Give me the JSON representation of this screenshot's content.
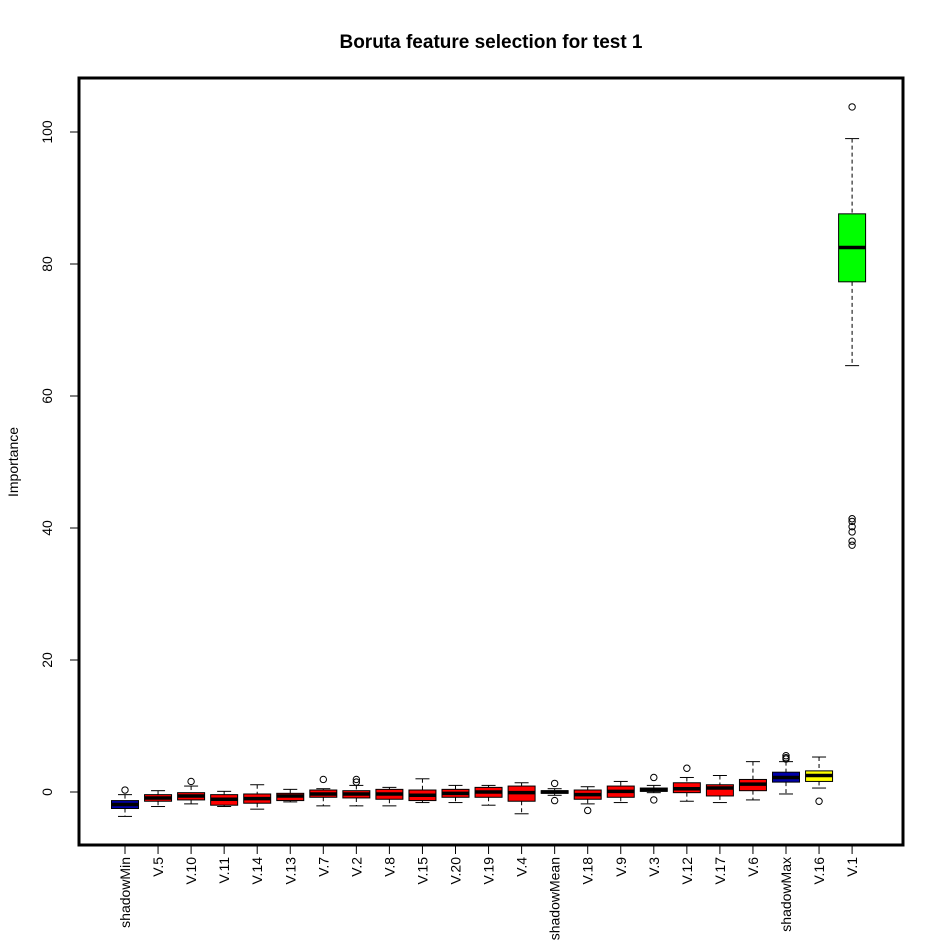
{
  "chart_data": {
    "type": "boxplot",
    "title": "Boruta feature selection for test 1",
    "xlabel": "",
    "ylabel": "Importance",
    "ylim": [
      -8,
      108
    ],
    "yticks": [
      0,
      20,
      40,
      60,
      80,
      100
    ],
    "grid": false,
    "legend": "none",
    "status_colors": {
      "shadow": "#0000aa",
      "rejected": "#ff0000",
      "tentative": "#ffff00",
      "confirmed": "#00ff00"
    },
    "categories": [
      "shadowMin",
      "V.5",
      "V.10",
      "V.11",
      "V.14",
      "V.13",
      "V.7",
      "V.2",
      "V.8",
      "V.15",
      "V.20",
      "V.19",
      "V.4",
      "shadowMean",
      "V.18",
      "V.9",
      "V.3",
      "V.12",
      "V.17",
      "V.6",
      "shadowMax",
      "V.16",
      "V.1"
    ],
    "category_labels": [
      "shadowMin",
      "V.5",
      "V.10",
      "V.11",
      "V.14",
      "V.13",
      "V.7",
      "V.2",
      "V.8",
      "V.15",
      "V.20",
      "V.19",
      "V.4",
      "shadowMean",
      "V.18",
      "V.9",
      "V.3",
      "V.12",
      "V.17",
      "V.6",
      "shadowMax",
      "V.16",
      "V.1"
    ],
    "boxes": [
      {
        "status": "shadow",
        "min": -3.7,
        "q1": -2.5,
        "median": -1.9,
        "q3": -1.3,
        "max": -0.4,
        "outliers": [
          0.3
        ]
      },
      {
        "status": "rejected",
        "min": -2.2,
        "q1": -1.4,
        "median": -0.9,
        "q3": -0.4,
        "max": 0.2,
        "outliers": []
      },
      {
        "status": "rejected",
        "min": -1.8,
        "q1": -1.2,
        "median": -0.6,
        "q3": -0.1,
        "max": 0.9,
        "outliers": [
          1.6
        ]
      },
      {
        "status": "rejected",
        "min": -2.2,
        "q1": -2.0,
        "median": -1.1,
        "q3": -0.4,
        "max": 0.1,
        "outliers": []
      },
      {
        "status": "rejected",
        "min": -2.6,
        "q1": -1.7,
        "median": -1.0,
        "q3": -0.3,
        "max": 1.1,
        "outliers": []
      },
      {
        "status": "rejected",
        "min": -1.5,
        "q1": -1.3,
        "median": -0.6,
        "q3": -0.2,
        "max": 0.4,
        "outliers": []
      },
      {
        "status": "rejected",
        "min": -2.1,
        "q1": -0.8,
        "median": -0.3,
        "q3": 0.3,
        "max": 0.5,
        "outliers": [
          1.9
        ]
      },
      {
        "status": "rejected",
        "min": -2.1,
        "q1": -0.9,
        "median": -0.3,
        "q3": 0.2,
        "max": 1.0,
        "outliers": [
          1.5,
          1.9
        ]
      },
      {
        "status": "rejected",
        "min": -2.1,
        "q1": -1.1,
        "median": -0.3,
        "q3": 0.4,
        "max": 0.7,
        "outliers": []
      },
      {
        "status": "rejected",
        "min": -1.6,
        "q1": -1.3,
        "median": -0.5,
        "q3": 0.3,
        "max": 2.0,
        "outliers": []
      },
      {
        "status": "rejected",
        "min": -1.6,
        "q1": -0.8,
        "median": -0.2,
        "q3": 0.4,
        "max": 1.0,
        "outliers": []
      },
      {
        "status": "rejected",
        "min": -2.0,
        "q1": -0.8,
        "median": 0.0,
        "q3": 0.7,
        "max": 1.0,
        "outliers": []
      },
      {
        "status": "rejected",
        "min": -3.3,
        "q1": -1.4,
        "median": -0.1,
        "q3": 0.9,
        "max": 1.4,
        "outliers": []
      },
      {
        "status": "shadow",
        "min": -0.5,
        "q1": -0.2,
        "median": 0.0,
        "q3": 0.2,
        "max": 0.5,
        "outliers": [
          -1.3,
          1.3
        ]
      },
      {
        "status": "rejected",
        "min": -1.8,
        "q1": -1.1,
        "median": -0.4,
        "q3": 0.3,
        "max": 0.8,
        "outliers": [
          -2.8
        ]
      },
      {
        "status": "rejected",
        "min": -1.6,
        "q1": -0.8,
        "median": 0.1,
        "q3": 0.9,
        "max": 1.6,
        "outliers": []
      },
      {
        "status": "rejected",
        "min": -0.1,
        "q1": 0.1,
        "median": 0.3,
        "q3": 0.6,
        "max": 1.0,
        "outliers": [
          -1.2,
          2.2
        ]
      },
      {
        "status": "rejected",
        "min": -1.4,
        "q1": -0.1,
        "median": 0.5,
        "q3": 1.4,
        "max": 2.2,
        "outliers": [
          3.6
        ]
      },
      {
        "status": "rejected",
        "min": -1.6,
        "q1": -0.6,
        "median": 0.6,
        "q3": 1.1,
        "max": 2.5,
        "outliers": []
      },
      {
        "status": "rejected",
        "min": -1.2,
        "q1": 0.2,
        "median": 1.2,
        "q3": 1.9,
        "max": 4.6,
        "outliers": []
      },
      {
        "status": "shadow",
        "min": -0.3,
        "q1": 1.5,
        "median": 2.2,
        "q3": 3.0,
        "max": 4.6,
        "outliers": [
          5.0,
          5.2,
          5.5
        ]
      },
      {
        "status": "tentative",
        "min": 0.6,
        "q1": 1.6,
        "median": 2.5,
        "q3": 3.2,
        "max": 5.3,
        "outliers": [
          -1.4
        ]
      },
      {
        "status": "confirmed",
        "min": 64.6,
        "q1": 77.3,
        "median": 82.5,
        "q3": 87.6,
        "max": 99.0,
        "outliers": [
          103.8,
          41.4,
          41.0,
          40.2,
          39.4,
          38.0,
          37.4
        ]
      }
    ]
  }
}
